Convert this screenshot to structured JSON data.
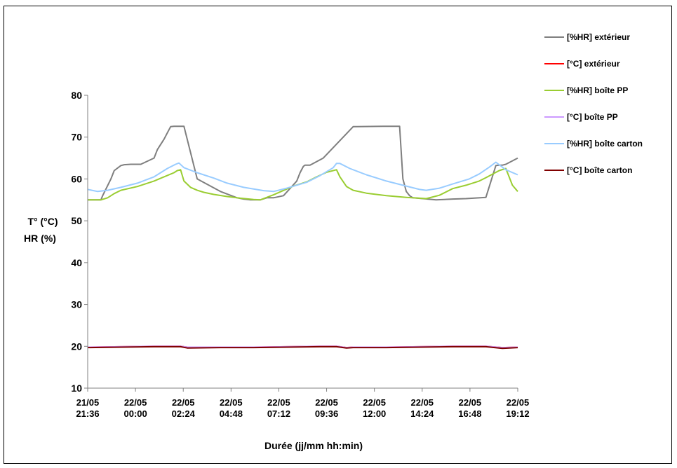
{
  "chart_data": {
    "type": "line",
    "ylabel": [
      "T° (°C)",
      "HR (%)"
    ],
    "xlabel": "Durée (jj/mm hh:min)",
    "ylim": [
      10,
      80
    ],
    "yticks": [
      10,
      20,
      30,
      40,
      50,
      60,
      70,
      80
    ],
    "xlim": [
      0,
      1296
    ],
    "xtick_values": [
      0,
      144,
      288,
      432,
      576,
      720,
      864,
      1008,
      1152,
      1296
    ],
    "xtick_labels": [
      [
        "21/05",
        "21:36"
      ],
      [
        "22/05",
        "00:00"
      ],
      [
        "22/05",
        "02:24"
      ],
      [
        "22/05",
        "04:48"
      ],
      [
        "22/05",
        "07:12"
      ],
      [
        "22/05",
        "09:36"
      ],
      [
        "22/05",
        "12:00"
      ],
      [
        "22/05",
        "14:24"
      ],
      [
        "22/05",
        "16:48"
      ],
      [
        "22/05",
        "19:12"
      ]
    ],
    "grid": false,
    "legend_position": "right",
    "series": [
      {
        "name": "[%HR] extérieur",
        "color": "#7f7f7f",
        "x": [
          0,
          40,
          45,
          70,
          80,
          100,
          110,
          130,
          160,
          200,
          210,
          230,
          240,
          250,
          260,
          290,
          330,
          400,
          450,
          470,
          490,
          500,
          520,
          540,
          560,
          590,
          630,
          640,
          650,
          655,
          660,
          670,
          710,
          800,
          890,
          940,
          950,
          960,
          970,
          980,
          1010,
          1050,
          1100,
          1140,
          1200,
          1230,
          1240,
          1250,
          1260,
          1296
        ],
        "y": [
          55,
          55,
          56,
          60,
          62,
          63.2,
          63.4,
          63.5,
          63.5,
          65,
          67,
          69.5,
          71,
          72.5,
          72.6,
          72.6,
          60,
          57,
          55.5,
          55.2,
          55,
          55,
          55,
          55.5,
          55.5,
          56,
          59.5,
          61.5,
          63,
          63.3,
          63.3,
          63.3,
          65,
          72.5,
          72.6,
          72.6,
          60,
          57,
          56,
          55.5,
          55.3,
          55,
          55.2,
          55.3,
          55.6,
          63.2,
          63.3,
          63.3,
          63.5,
          65
        ]
      },
      {
        "name": "[°C] extérieur",
        "color": "#ff0000",
        "x": [
          0,
          100,
          200,
          280,
          300,
          400,
          500,
          600,
          700,
          750,
          780,
          800,
          900,
          1000,
          1100,
          1200,
          1250,
          1296
        ],
        "y": [
          19.8,
          19.9,
          20,
          20,
          19.8,
          19.8,
          19.8,
          19.9,
          20,
          20,
          19.7,
          19.8,
          19.8,
          19.9,
          20,
          20,
          19.7,
          19.8
        ]
      },
      {
        "name": "[%HR] boîte PP",
        "color": "#9acd32",
        "x": [
          0,
          40,
          60,
          80,
          100,
          150,
          200,
          230,
          260,
          270,
          280,
          290,
          310,
          330,
          350,
          380,
          420,
          460,
          500,
          520,
          560,
          620,
          660,
          690,
          720,
          750,
          760,
          780,
          800,
          840,
          900,
          960,
          1000,
          1020,
          1060,
          1100,
          1140,
          1180,
          1200,
          1240,
          1260,
          1270,
          1280,
          1296
        ],
        "y": [
          55,
          55,
          55.5,
          56.5,
          57.3,
          58.2,
          59.5,
          60.5,
          61.5,
          62,
          62.2,
          59.5,
          58,
          57.3,
          56.8,
          56.3,
          55.8,
          55.4,
          55.1,
          55,
          56.2,
          58.3,
          59.3,
          60.5,
          61.6,
          62.2,
          60.5,
          58.2,
          57.3,
          56.6,
          56,
          55.6,
          55.4,
          55.3,
          56.1,
          57.7,
          58.5,
          59.5,
          60.3,
          62,
          62.5,
          60.5,
          58.5,
          57
        ]
      },
      {
        "name": "[°C] boîte PP",
        "color": "#cc99ff",
        "x": [
          0,
          100,
          200,
          280,
          300,
          400,
          500,
          600,
          700,
          750,
          780,
          800,
          900,
          1000,
          1100,
          1200,
          1250,
          1296
        ],
        "y": [
          19.8,
          19.9,
          20,
          20,
          19.8,
          19.8,
          19.8,
          19.9,
          20,
          20,
          19.7,
          19.8,
          19.8,
          19.9,
          20,
          20,
          19.7,
          19.8
        ]
      },
      {
        "name": "[%HR] boîte carton",
        "color": "#99ccff",
        "x": [
          0,
          30,
          60,
          100,
          150,
          200,
          240,
          265,
          275,
          290,
          330,
          380,
          420,
          470,
          530,
          560,
          600,
          660,
          700,
          740,
          750,
          760,
          790,
          840,
          900,
          960,
          1000,
          1020,
          1060,
          1100,
          1150,
          1180,
          1210,
          1230,
          1260,
          1296
        ],
        "y": [
          57.5,
          57,
          57.3,
          58,
          59,
          60.5,
          62.5,
          63.5,
          63.8,
          62.7,
          61.5,
          60.2,
          59,
          58,
          57.2,
          57,
          57.8,
          59.2,
          60.8,
          62.7,
          63.7,
          63.7,
          62.5,
          61,
          59.5,
          58.3,
          57.5,
          57.3,
          57.8,
          58.8,
          60,
          61.2,
          62.8,
          64,
          62.2,
          61
        ]
      },
      {
        "name": "[°C] boîte carton",
        "color": "#800000",
        "x": [
          0,
          100,
          200,
          280,
          300,
          400,
          500,
          600,
          700,
          750,
          780,
          800,
          900,
          1000,
          1100,
          1200,
          1250,
          1296
        ],
        "y": [
          19.7,
          19.8,
          19.9,
          19.9,
          19.6,
          19.7,
          19.7,
          19.8,
          19.9,
          19.9,
          19.6,
          19.7,
          19.7,
          19.8,
          19.9,
          19.9,
          19.5,
          19.7
        ]
      }
    ]
  }
}
